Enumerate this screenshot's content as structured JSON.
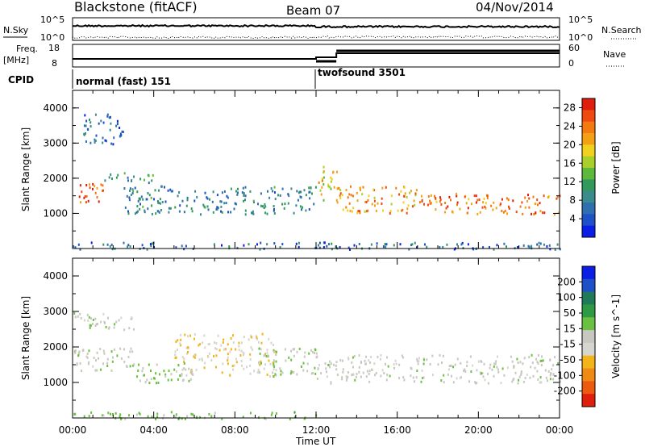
{
  "header": {
    "station": "Blackstone (fitACF)",
    "beam": "Beam 07",
    "date": "04/Nov/2014"
  },
  "noise_panel": {
    "left_label": "N.Sky",
    "right_label": "N.Search",
    "left_ticks": [
      "10^5",
      "10^0"
    ],
    "right_ticks": [
      "10^5",
      "10^0"
    ]
  },
  "freq_panel": {
    "label_line1": "Freq.",
    "label_line2": "[MHz]",
    "right_label": "Nave",
    "left_ticks": [
      "18",
      "8"
    ],
    "right_ticks": [
      "60",
      "0"
    ]
  },
  "cpid": {
    "label": "CPID",
    "segments": [
      {
        "start": "00:00",
        "name": "normal (fast) 151"
      },
      {
        "start": "12:00",
        "name": "twofsound 3501"
      }
    ]
  },
  "colors": {
    "power_scale": [
      "#0a1ee6",
      "#1e50c8",
      "#2f6fb0",
      "#3a8c8c",
      "#2f9a5a",
      "#5db83c",
      "#a8cf2a",
      "#f0d21e",
      "#f5a014",
      "#f47a10",
      "#ef4a10",
      "#e01e0e"
    ],
    "velocity_scale": [
      "#0a1ee6",
      "#1e50c8",
      "#1f7a5a",
      "#2f9a46",
      "#6ac040",
      "#c8c8c0",
      "#d6d6d0",
      "#f2b418",
      "#f08a14",
      "#ec5a10",
      "#e01e0e"
    ],
    "ground_scatter": "#c0c0b8"
  },
  "chart_data": [
    {
      "type": "heatmap",
      "title": "Power",
      "xlabel": "Time UT",
      "ylabel": "Slant Range [km]",
      "xlim": [
        "00:00",
        "00:00"
      ],
      "ylim": [
        0,
        4500
      ],
      "x_ticks": [
        "00:00",
        "04:00",
        "08:00",
        "12:00",
        "16:00",
        "20:00",
        "00:00"
      ],
      "y_ticks": [
        1000,
        2000,
        3000,
        4000
      ],
      "colorbar": {
        "label": "Power [dB]",
        "ticks": [
          4,
          8,
          12,
          16,
          20,
          24,
          28
        ],
        "range": [
          0,
          30
        ]
      },
      "features": [
        {
          "t": [
            0,
            1.5
          ],
          "range_km": [
            1300,
            1900
          ],
          "value": 26
        },
        {
          "t": [
            1.5,
            4
          ],
          "range_km": [
            1900,
            2200
          ],
          "value": 10
        },
        {
          "t": [
            0.5,
            2.5
          ],
          "range_km": [
            3000,
            3900
          ],
          "value": 6
        },
        {
          "t": [
            2.5,
            12
          ],
          "range_km": [
            1000,
            1800
          ],
          "value": 8
        },
        {
          "t": [
            12,
            13
          ],
          "range_km": [
            1400,
            2400
          ],
          "value": 18
        },
        {
          "t": [
            13,
            17
          ],
          "range_km": [
            1000,
            1800
          ],
          "value": 22
        },
        {
          "t": [
            17,
            24
          ],
          "range_km": [
            1000,
            1600
          ],
          "value": 24
        },
        {
          "t": [
            0,
            24
          ],
          "range_km": [
            0,
            200
          ],
          "value": 6
        }
      ]
    },
    {
      "type": "heatmap",
      "title": "Velocity",
      "xlabel": "Time UT",
      "ylabel": "Slant Range [km]",
      "xlim": [
        "00:00",
        "00:00"
      ],
      "ylim": [
        0,
        4500
      ],
      "x_ticks": [
        "00:00",
        "04:00",
        "08:00",
        "12:00",
        "16:00",
        "20:00",
        "00:00"
      ],
      "y_ticks": [
        1000,
        2000,
        3000,
        4000
      ],
      "colorbar": {
        "label": "Velocity [m s^-1]",
        "ticks": [
          200,
          100,
          50,
          15,
          -15,
          -50,
          -100,
          -200
        ],
        "range": [
          -250,
          250
        ]
      },
      "features": [
        {
          "t": [
            0,
            3
          ],
          "range_km": [
            1300,
            2000
          ],
          "value": 0
        },
        {
          "t": [
            0,
            3
          ],
          "range_km": [
            2500,
            3000
          ],
          "value": 0
        },
        {
          "t": [
            5,
            10
          ],
          "range_km": [
            1200,
            2400
          ],
          "value": -60
        },
        {
          "t": [
            3,
            6
          ],
          "range_km": [
            1000,
            1600
          ],
          "value": 30
        },
        {
          "t": [
            9,
            12
          ],
          "range_km": [
            1200,
            2000
          ],
          "value": 20
        },
        {
          "t": [
            12,
            24
          ],
          "range_km": [
            1000,
            1800
          ],
          "value": 0
        },
        {
          "t": [
            0,
            12
          ],
          "range_km": [
            0,
            200
          ],
          "value": 40
        }
      ]
    }
  ]
}
